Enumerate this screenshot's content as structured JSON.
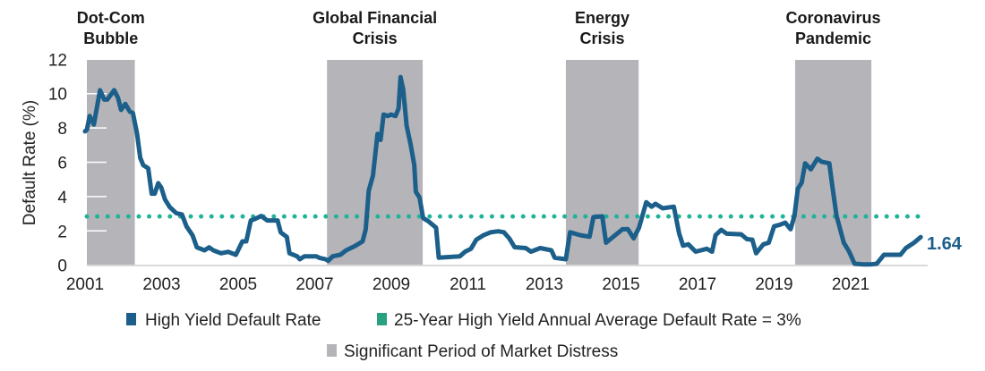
{
  "chart_data": {
    "type": "line",
    "title": "",
    "xlabel": "",
    "ylabel": "Default Rate (%)",
    "xlim": [
      2001,
      2023.2
    ],
    "ylim": [
      0,
      12
    ],
    "x_ticks": [
      "2001",
      "2003",
      "2005",
      "2007",
      "2009",
      "2011",
      "2013",
      "2015",
      "2017",
      "2019",
      "2021"
    ],
    "y_ticks": [
      "0",
      "2",
      "4",
      "6",
      "8",
      "10",
      "12"
    ],
    "grid": false,
    "legend_position": "bottom",
    "colors": {
      "series": "#1b5f8a",
      "average": "#1fb39a",
      "average_legend": "#27a17f",
      "distress": "#b5b4b9"
    },
    "series": [
      {
        "name": "High Yield Default Rate",
        "end_label": "1.64",
        "x": [
          2001.0,
          2001.05,
          2001.12,
          2001.23,
          2001.39,
          2001.5,
          2001.58,
          2001.76,
          2001.86,
          2001.94,
          2002.05,
          2002.17,
          2002.25,
          2002.36,
          2002.44,
          2002.52,
          2002.65,
          2002.74,
          2002.82,
          2002.91,
          2002.99,
          2003.09,
          2003.21,
          2003.38,
          2003.53,
          2003.65,
          2003.81,
          2003.92,
          2004.12,
          2004.24,
          2004.35,
          2004.55,
          2004.74,
          2004.94,
          2005.11,
          2005.21,
          2005.33,
          2005.44,
          2005.6,
          2005.76,
          2006.03,
          2006.11,
          2006.27,
          2006.34,
          2006.54,
          2006.61,
          2006.73,
          2007.04,
          2007.12,
          2007.28,
          2007.35,
          2007.47,
          2007.67,
          2007.82,
          2008.06,
          2008.25,
          2008.33,
          2008.41,
          2008.52,
          2008.64,
          2008.72,
          2008.8,
          2008.91,
          2008.99,
          2009.11,
          2009.19,
          2009.24,
          2009.31,
          2009.4,
          2009.5,
          2009.6,
          2009.64,
          2009.74,
          2009.83,
          2009.98,
          2010.17,
          2010.24,
          2010.79,
          2010.93,
          2011.08,
          2011.22,
          2011.41,
          2011.6,
          2011.79,
          2011.94,
          2012.08,
          2012.22,
          2012.51,
          2012.65,
          2012.89,
          2013.18,
          2013.27,
          2013.56,
          2013.67,
          2013.94,
          2014.18,
          2014.28,
          2014.51,
          2014.61,
          2014.8,
          2015.04,
          2015.18,
          2015.33,
          2015.47,
          2015.66,
          2015.8,
          2015.9,
          2016.09,
          2016.38,
          2016.52,
          2016.62,
          2016.76,
          2016.95,
          2017.24,
          2017.38,
          2017.47,
          2017.62,
          2017.76,
          2018.14,
          2018.29,
          2018.43,
          2018.53,
          2018.72,
          2018.86,
          2019.0,
          2019.15,
          2019.29,
          2019.43,
          2019.53,
          2019.62,
          2019.72,
          2019.81,
          2019.96,
          2020.13,
          2020.24,
          2020.44,
          2020.53,
          2020.63,
          2020.82,
          2020.96,
          2021.1,
          2021.34,
          2021.53,
          2021.68,
          2021.87,
          2022.3,
          2022.44,
          2022.65,
          2022.83
        ],
        "y": [
          7.8,
          7.9,
          8.7,
          8.2,
          10.2,
          9.65,
          9.65,
          10.2,
          9.75,
          9.05,
          9.4,
          8.95,
          8.87,
          7.65,
          6.26,
          5.83,
          5.65,
          4.17,
          4.17,
          4.78,
          4.52,
          3.83,
          3.39,
          3.04,
          2.96,
          2.26,
          1.74,
          1.04,
          0.87,
          1.04,
          0.87,
          0.7,
          0.78,
          0.61,
          1.39,
          1.39,
          2.61,
          2.7,
          2.87,
          2.61,
          2.61,
          1.91,
          1.65,
          0.7,
          0.52,
          0.35,
          0.52,
          0.52,
          0.43,
          0.35,
          0.26,
          0.52,
          0.61,
          0.87,
          1.13,
          1.39,
          2.09,
          4.35,
          5.22,
          7.65,
          7.3,
          8.78,
          8.7,
          8.78,
          8.7,
          9.13,
          10.96,
          10.23,
          8.13,
          7.08,
          5.86,
          4.28,
          3.93,
          2.75,
          2.54,
          2.19,
          0.44,
          0.52,
          0.79,
          0.96,
          1.49,
          1.75,
          1.92,
          1.98,
          1.92,
          1.57,
          1.05,
          1.0,
          0.79,
          1.0,
          0.87,
          0.44,
          0.35,
          1.92,
          1.75,
          1.66,
          2.8,
          2.85,
          1.31,
          1.66,
          2.1,
          2.1,
          1.57,
          2.19,
          3.67,
          3.41,
          3.58,
          3.32,
          3.41,
          1.84,
          1.14,
          1.22,
          0.79,
          0.96,
          0.79,
          1.75,
          2.06,
          1.84,
          1.8,
          1.52,
          1.49,
          0.7,
          1.22,
          1.31,
          2.27,
          2.36,
          2.48,
          2.1,
          2.88,
          4.46,
          4.81,
          5.94,
          5.59,
          6.21,
          6.03,
          5.94,
          4.46,
          2.88,
          1.31,
          0.79,
          0.09,
          0.05,
          0.05,
          0.09,
          0.61,
          0.61,
          1.0,
          1.3,
          1.64
        ]
      },
      {
        "name": "25-Year High Yield Annual Average Default Rate = 3%",
        "value": 3
      }
    ],
    "distress_periods": {
      "legend": "Significant Period of Market Distress",
      "periods": [
        {
          "label_line1": "Dot-Com",
          "label_line2": "Bubble",
          "start": 2001.0,
          "end": 2002.3
        },
        {
          "label_line1": "Global Financial",
          "label_line2": "Crisis",
          "start": 2007.32,
          "end": 2009.82
        },
        {
          "label_line1": "Energy",
          "label_line2": "Crisis",
          "start": 2013.56,
          "end": 2015.46
        },
        {
          "label_line1": "Coronavirus",
          "label_line2": "Pandemic",
          "start": 2019.55,
          "end": 2021.54
        }
      ]
    }
  }
}
